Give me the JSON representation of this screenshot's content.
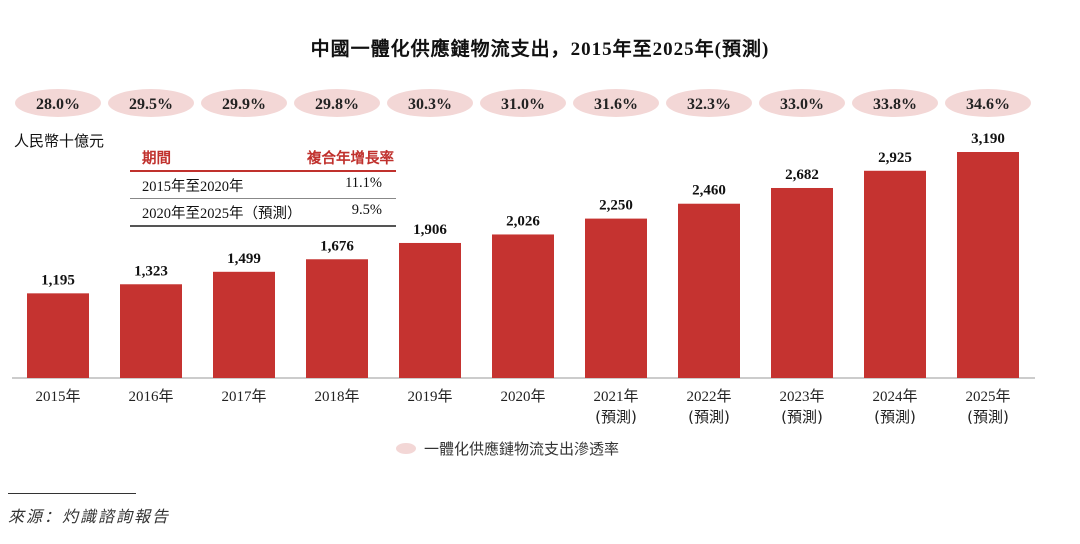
{
  "chart_data": {
    "type": "bar",
    "title": "中國一體化供應鏈物流支出，2015年至2025年(預測)",
    "ylabel": "人民幣十億元",
    "categories": [
      "2015年",
      "2016年",
      "2017年",
      "2018年",
      "2019年",
      "2020年",
      "2021年",
      "2022年",
      "2023年",
      "2024年",
      "2025年"
    ],
    "category_sublabels": [
      "",
      "",
      "",
      "",
      "",
      "",
      "(預測)",
      "(預測)",
      "(預測)",
      "(預測)",
      "(預測)"
    ],
    "values": [
      1195,
      1323,
      1499,
      1676,
      1906,
      2026,
      2250,
      2460,
      2682,
      2925,
      3190
    ],
    "value_labels": [
      "1,195",
      "1,323",
      "1,499",
      "1,676",
      "1,906",
      "2,026",
      "2,250",
      "2,460",
      "2,682",
      "2,925",
      "3,190"
    ],
    "penetration_rate": [
      "28.0%",
      "29.5%",
      "29.9%",
      "29.8%",
      "30.3%",
      "31.0%",
      "31.6%",
      "32.3%",
      "33.0%",
      "33.8%",
      "34.6%"
    ],
    "legend": "一體化供應鏈物流支出滲透率",
    "ylim": [
      0,
      3190
    ],
    "grid": false,
    "colors": {
      "bar": "#c53330",
      "rate_bubble": "#f3d7d6"
    }
  },
  "cagr_table": {
    "headers": [
      "期間",
      "複合年增長率"
    ],
    "rows": [
      [
        "2015年至2020年",
        "11.1%"
      ],
      [
        "2020年至2025年（預測）",
        "9.5%"
      ]
    ]
  },
  "source": "來源：灼識諮詢報告"
}
